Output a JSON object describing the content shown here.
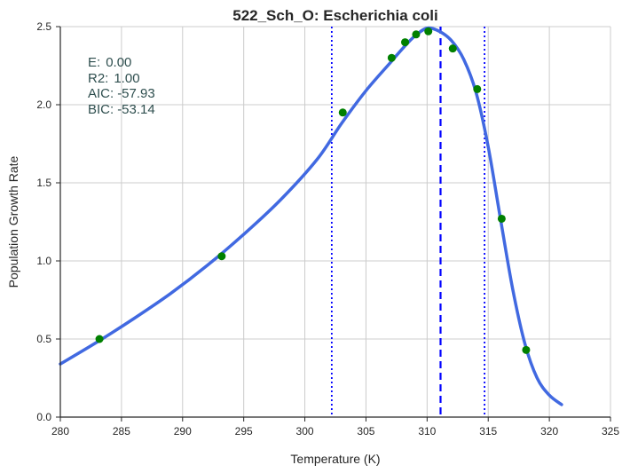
{
  "chart_data": {
    "type": "line",
    "title": "522_Sch_O: Escherichia coli",
    "xlabel": "Temperature (K)",
    "ylabel": "Population Growth Rate",
    "xlim": [
      280,
      325
    ],
    "ylim": [
      0.0,
      2.5
    ],
    "x_ticks": [
      280,
      285,
      290,
      295,
      300,
      305,
      310,
      315,
      320,
      325
    ],
    "x_tick_labels": [
      "280",
      "285",
      "290",
      "295",
      "300",
      "305",
      "310",
      "315",
      "320",
      "325"
    ],
    "y_ticks": [
      0.0,
      0.5,
      1.0,
      1.5,
      2.0,
      2.5
    ],
    "y_tick_labels": [
      "0.0",
      "0.5",
      "1.0",
      "1.5",
      "2.0",
      "2.5"
    ],
    "grid": true,
    "stats": [
      {
        "label": "E:",
        "value": "0.00"
      },
      {
        "label": "R2:",
        "value": "1.00"
      },
      {
        "label": "AIC:",
        "value": "-57.93"
      },
      {
        "label": "BIC:",
        "value": "-53.14"
      }
    ],
    "fit_curve": {
      "name": "model fit",
      "color": "#4169e1",
      "x": [
        280,
        283,
        286,
        289,
        292,
        295,
        298,
        301,
        303,
        305,
        307,
        308,
        309,
        310,
        311,
        312,
        313,
        314,
        315,
        316,
        317,
        318,
        319,
        320,
        321
      ],
      "y": [
        0.34,
        0.48,
        0.63,
        0.79,
        0.97,
        1.17,
        1.39,
        1.65,
        1.88,
        2.09,
        2.27,
        2.36,
        2.44,
        2.49,
        2.47,
        2.41,
        2.29,
        2.08,
        1.73,
        1.27,
        0.82,
        0.47,
        0.25,
        0.14,
        0.08
      ]
    },
    "observations": {
      "name": "observed data",
      "color": "#008000",
      "x": [
        283.2,
        293.2,
        303.1,
        307.1,
        308.2,
        309.1,
        310.1,
        312.1,
        314.1,
        316.1,
        318.1
      ],
      "y": [
        0.5,
        1.03,
        1.95,
        2.3,
        2.4,
        2.45,
        2.47,
        2.36,
        2.1,
        1.27,
        0.43
      ]
    },
    "vertical_lines": [
      {
        "name": "lower-bound",
        "x": 302.2,
        "style": "dotted",
        "color": "#0000ff"
      },
      {
        "name": "peak-temperature",
        "x": 311.1,
        "style": "dashed",
        "color": "#0000ff"
      },
      {
        "name": "upper-bound",
        "x": 314.7,
        "style": "dotted",
        "color": "#0000ff"
      }
    ]
  }
}
